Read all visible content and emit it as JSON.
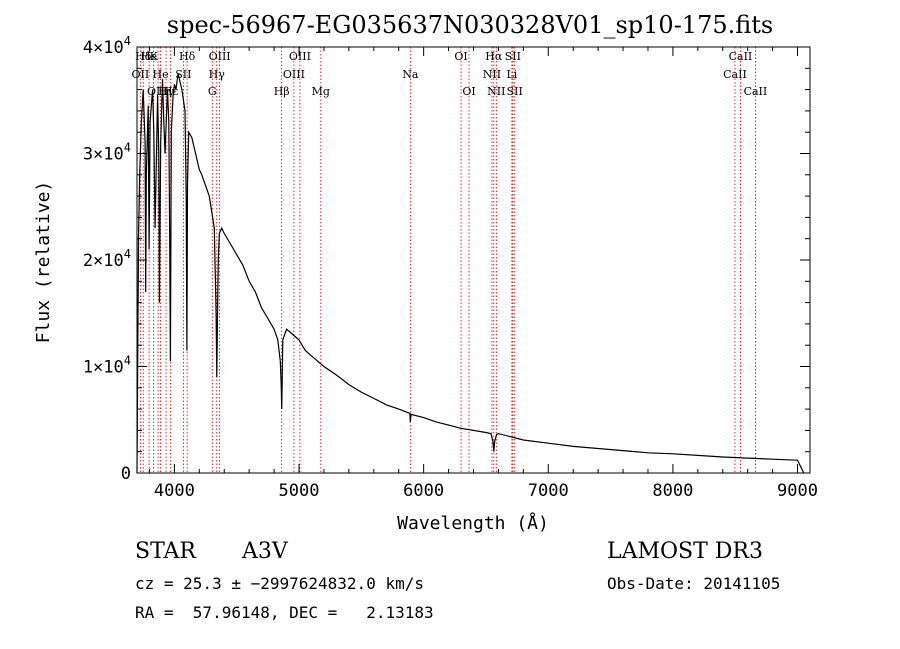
{
  "chart_data": {
    "type": "line",
    "title": "spec-56967-EG035637N030328V01_sp10-175.fits",
    "xlabel": "Wavelength (Å)",
    "ylabel": "Flux (relative)",
    "xlim": [
      3700,
      9100
    ],
    "ylim": [
      0,
      40000
    ],
    "xticks": [
      4000,
      5000,
      6000,
      7000,
      8000,
      9000
    ],
    "xtick_labels": [
      "4000",
      "5000",
      "6000",
      "7000",
      "8000",
      "9000"
    ],
    "yticks": [
      0,
      10000,
      20000,
      30000,
      40000
    ],
    "ytick_labels": [
      {
        "mantissa": "0",
        "exponent": ""
      },
      {
        "mantissa": "1×10",
        "exponent": "4"
      },
      {
        "mantissa": "2×10",
        "exponent": "4"
      },
      {
        "mantissa": "3×10",
        "exponent": "4"
      },
      {
        "mantissa": "4×10",
        "exponent": "4"
      }
    ],
    "grid": false,
    "line_color": "#000000",
    "marker_color": "#cc0000",
    "series": [
      {
        "name": "flux",
        "x": [
          3700,
          3712,
          3722,
          3735,
          3750,
          3765,
          3770,
          3775,
          3790,
          3797,
          3805,
          3825,
          3835,
          3845,
          3865,
          3875,
          3880,
          3890,
          3905,
          3915,
          3925,
          3945,
          3955,
          3962,
          3968,
          3975,
          3990,
          4000,
          4012,
          4030,
          4060,
          4085,
          4095,
          4100,
          4105,
          4115,
          4140,
          4180,
          4200,
          4220,
          4250,
          4280,
          4300,
          4320,
          4335,
          4340,
          4345,
          4352,
          4360,
          4380,
          4400,
          4450,
          4500,
          4550,
          4600,
          4650,
          4700,
          4750,
          4800,
          4830,
          4850,
          4858,
          4861,
          4864,
          4870,
          4900,
          4950,
          5000,
          5050,
          5100,
          5150,
          5200,
          5300,
          5400,
          5500,
          5600,
          5700,
          5800,
          5890,
          5893,
          5896,
          5900,
          6000,
          6100,
          6200,
          6300,
          6400,
          6500,
          6540,
          6556,
          6563,
          6570,
          6585,
          6600,
          6700,
          6800,
          7000,
          7200,
          7400,
          7600,
          7800,
          8000,
          8200,
          8400,
          8600,
          8800,
          9000,
          9050
        ],
        "y": [
          0,
          22000,
          28000,
          33000,
          36000,
          31000,
          17000,
          28000,
          34500,
          21000,
          33000,
          36000,
          32000,
          23000,
          35500,
          30000,
          16000,
          31000,
          37000,
          33000,
          30000,
          36000,
          33000,
          22000,
          10500,
          32000,
          35500,
          36500,
          36000,
          37500,
          36000,
          34000,
          26000,
          11500,
          27000,
          32000,
          31500,
          29500,
          28500,
          28000,
          27000,
          26000,
          24500,
          23000,
          15000,
          9000,
          14000,
          20000,
          22500,
          23000,
          22500,
          21500,
          20500,
          19500,
          18000,
          17000,
          15500,
          14500,
          13500,
          12500,
          10500,
          8000,
          6000,
          8000,
          12500,
          13500,
          13000,
          12500,
          11500,
          11000,
          10500,
          10000,
          9200,
          8300,
          7600,
          7000,
          6400,
          6000,
          5600,
          4800,
          5200,
          5500,
          5200,
          4800,
          4500,
          4200,
          4000,
          3800,
          3700,
          3000,
          2000,
          3000,
          3600,
          3700,
          3400,
          3100,
          2800,
          2500,
          2300,
          2100,
          1900,
          1800,
          1650,
          1500,
          1400,
          1300,
          1200,
          0
        ]
      }
    ],
    "line_markers": [
      {
        "label": "Hδ",
        "wl": 3750,
        "row": 0
      },
      {
        "label": "He",
        "wl": 3797,
        "row": 0
      },
      {
        "label": "K",
        "wl": 3834,
        "row": 0
      },
      {
        "label": "Hδ",
        "wl": 4102,
        "row": 0
      },
      {
        "label": "OIII",
        "wl": 4363,
        "row": 0
      },
      {
        "label": "OIII",
        "wl": 5007,
        "row": 0
      },
      {
        "label": "OI",
        "wl": 6300,
        "row": 0
      },
      {
        "label": "Hα",
        "wl": 6563,
        "row": 0
      },
      {
        "label": "SII",
        "wl": 6716,
        "row": 0
      },
      {
        "label": "CaII",
        "wl": 8542,
        "row": 0
      },
      {
        "label": "OII",
        "wl": 3727,
        "row": 1
      },
      {
        "label": "He",
        "wl": 3889,
        "row": 1
      },
      {
        "label": "SII",
        "wl": 4072,
        "row": 1
      },
      {
        "label": "Hγ",
        "wl": 4340,
        "row": 1
      },
      {
        "label": "OIII",
        "wl": 4959,
        "row": 1
      },
      {
        "label": "Na",
        "wl": 5893,
        "row": 1
      },
      {
        "label": "NII",
        "wl": 6548,
        "row": 1
      },
      {
        "label": "Li",
        "wl": 6708,
        "row": 1
      },
      {
        "label": "CaII",
        "wl": 8498,
        "row": 1
      },
      {
        "label": "OIII",
        "wl": 3869,
        "row": 2
      },
      {
        "label": "Hγ",
        "wl": 3933,
        "row": 2
      },
      {
        "label": "Hε",
        "wl": 3970,
        "row": 2
      },
      {
        "label": "G",
        "wl": 4304,
        "row": 2
      },
      {
        "label": "Hβ",
        "wl": 4861,
        "row": 2
      },
      {
        "label": "Mg",
        "wl": 5175,
        "row": 2
      },
      {
        "label": "OI",
        "wl": 6364,
        "row": 2
      },
      {
        "label": "NII",
        "wl": 6583,
        "row": 2
      },
      {
        "label": "SII",
        "wl": 6731,
        "row": 2
      },
      {
        "label": "CaII",
        "wl": 8662,
        "row": 2
      }
    ]
  },
  "info": {
    "object_class": "STAR",
    "subclass": "A3V",
    "survey": "LAMOST DR3",
    "cz_line": "cz = 25.3 ± −2997624832.0 km/s",
    "obs_date_line": "Obs-Date: 20141105",
    "coord_line": "RA =  57.96148, DEC =   2.13183"
  }
}
